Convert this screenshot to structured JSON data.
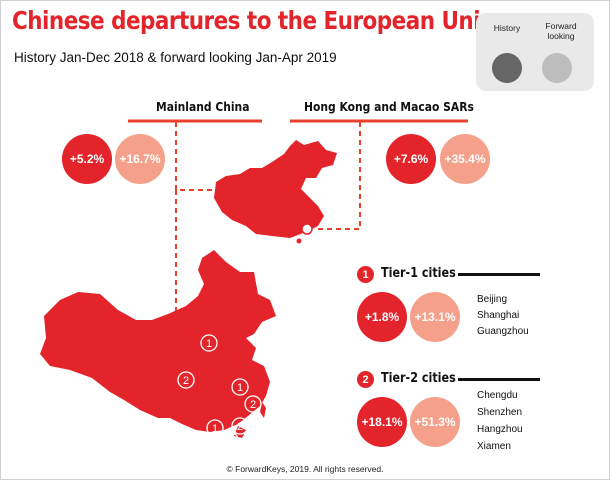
{
  "title": "Chinese departures to the European Union",
  "subtitle": "History Jan-Dec 2018 & forward looking Jan-Apr 2019",
  "legend": {
    "history_label": "History",
    "forward_label": "Forward looking",
    "history_color": "#666666",
    "forward_color": "#bdbdbd"
  },
  "colors": {
    "accent": "#e3242b",
    "history": "#e3242b",
    "forward": "#f4a08a"
  },
  "chart_data": {
    "type": "table",
    "units": "%",
    "series_names": [
      "History",
      "Forward looking"
    ],
    "segments": [
      {
        "name": "Mainland China",
        "history": "+5.2%",
        "forward": "+16.7%",
        "history_value": 5.2,
        "forward_value": 16.7
      },
      {
        "name": "Hong Kong and Macao SARs",
        "history": "+7.6%",
        "forward": "+35.4%",
        "history_value": 7.6,
        "forward_value": 35.4
      },
      {
        "name": "Tier-1 cities",
        "number": "1",
        "history": "+1.8%",
        "forward": "+13.1%",
        "history_value": 1.8,
        "forward_value": 13.1,
        "cities": [
          "Beijing",
          "Shanghai",
          "Guangzhou"
        ]
      },
      {
        "name": "Tier-2 cities",
        "number": "2",
        "history": "+18.1%",
        "forward": "+51.3%",
        "history_value": 18.1,
        "forward_value": 51.3,
        "cities": [
          "Chengdu",
          "Shenzhen",
          "Hangzhou",
          "Xiamen"
        ]
      }
    ]
  },
  "map_markers": [
    {
      "label": "1",
      "city": "Beijing"
    },
    {
      "label": "2",
      "city": "Chengdu"
    },
    {
      "label": "1",
      "city": "Shanghai"
    },
    {
      "label": "2",
      "city": "Hangzhou"
    },
    {
      "label": "1",
      "city": "Guangzhou"
    },
    {
      "label": "2",
      "city": "Xiamen"
    },
    {
      "label": "2",
      "city": "Shenzhen"
    }
  ],
  "copyright": "© ForwardKeys, 2019. All rights reserved."
}
